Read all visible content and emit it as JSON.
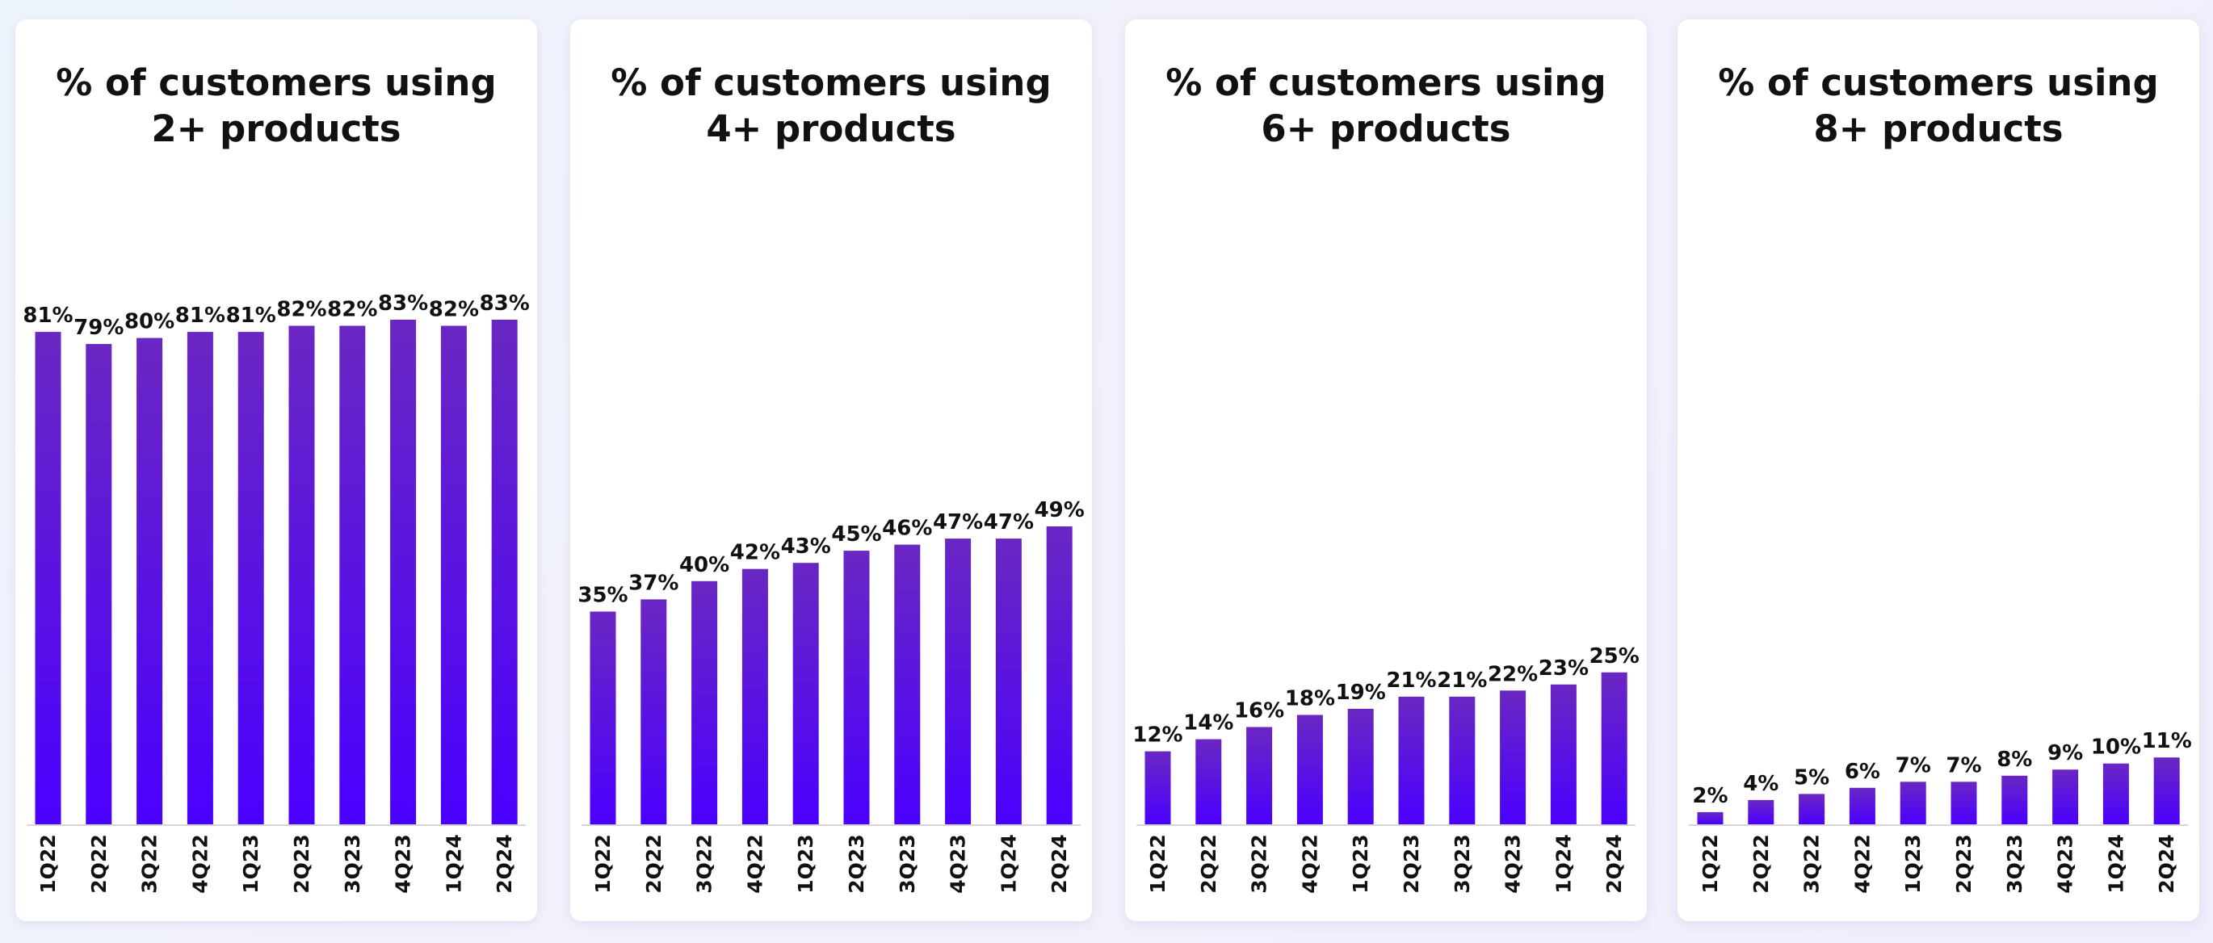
{
  "colors": {
    "bar_top": "#6a27c2",
    "bar_bottom": "#4a00ff",
    "axis": "#d6d6d6",
    "text": "#111111"
  },
  "chart_data": [
    {
      "type": "bar",
      "title_lines": [
        "% of customers using",
        "2+ products"
      ],
      "categories": [
        "1Q22",
        "2Q22",
        "3Q22",
        "4Q22",
        "1Q23",
        "2Q23",
        "3Q23",
        "4Q23",
        "1Q24",
        "2Q24"
      ],
      "values": [
        81,
        79,
        80,
        81,
        81,
        82,
        82,
        83,
        82,
        83
      ],
      "value_labels": [
        "81%",
        "79%",
        "80%",
        "81%",
        "81%",
        "82%",
        "82%",
        "83%",
        "82%",
        "83%"
      ],
      "ylim": [
        0,
        100
      ],
      "xlabel": "",
      "ylabel": "",
      "grid": false
    },
    {
      "type": "bar",
      "title_lines": [
        "% of customers using",
        "4+ products"
      ],
      "categories": [
        "1Q22",
        "2Q22",
        "3Q22",
        "4Q22",
        "1Q23",
        "2Q23",
        "3Q23",
        "4Q23",
        "1Q24",
        "2Q24"
      ],
      "values": [
        35,
        37,
        40,
        42,
        43,
        45,
        46,
        47,
        47,
        49
      ],
      "value_labels": [
        "35%",
        "37%",
        "40%",
        "42%",
        "43%",
        "45%",
        "46%",
        "47%",
        "47%",
        "49%"
      ],
      "ylim": [
        0,
        100
      ],
      "xlabel": "",
      "ylabel": "",
      "grid": false
    },
    {
      "type": "bar",
      "title_lines": [
        "% of customers using",
        "6+ products"
      ],
      "categories": [
        "1Q22",
        "2Q22",
        "3Q22",
        "4Q22",
        "1Q23",
        "2Q23",
        "3Q23",
        "4Q23",
        "1Q24",
        "2Q24"
      ],
      "values": [
        12,
        14,
        16,
        18,
        19,
        21,
        21,
        22,
        23,
        25
      ],
      "value_labels": [
        "12%",
        "14%",
        "16%",
        "18%",
        "19%",
        "21%",
        "21%",
        "22%",
        "23%",
        "25%"
      ],
      "ylim": [
        0,
        100
      ],
      "xlabel": "",
      "ylabel": "",
      "grid": false
    },
    {
      "type": "bar",
      "title_lines": [
        "% of customers using",
        "8+ products"
      ],
      "categories": [
        "1Q22",
        "2Q22",
        "3Q22",
        "4Q22",
        "1Q23",
        "2Q23",
        "3Q23",
        "4Q23",
        "1Q24",
        "2Q24"
      ],
      "values": [
        2,
        4,
        5,
        6,
        7,
        7,
        8,
        9,
        10,
        11
      ],
      "value_labels": [
        "2%",
        "4%",
        "5%",
        "6%",
        "7%",
        "7%",
        "8%",
        "9%",
        "10%",
        "11%"
      ],
      "ylim": [
        0,
        100
      ],
      "xlabel": "",
      "ylabel": "",
      "grid": false
    }
  ]
}
